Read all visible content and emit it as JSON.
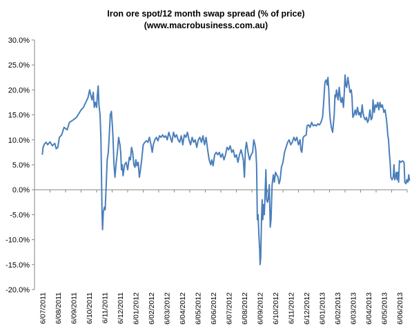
{
  "chart_data": {
    "type": "line",
    "title": "Iron ore spot/12 month swap spread (% of price)",
    "subtitle": "(www.macrobusiness.com.au)",
    "xlabel": "",
    "ylabel": "",
    "ylim": [
      -20,
      30
    ],
    "grid": false,
    "legend": "none",
    "yticks": [
      "30.0%",
      "25.0%",
      "20.0%",
      "15.0%",
      "10.0%",
      "5.0%",
      "0.0%",
      "-5.0%",
      "-10.0%",
      "-15.0%",
      "-20.0%"
    ],
    "yticks_values": [
      30,
      25,
      20,
      15,
      10,
      5,
      0,
      -5,
      -10,
      -15,
      -20
    ],
    "categories": [
      "6/07/2011",
      "6/08/2011",
      "6/09/2011",
      "6/10/2011",
      "6/11/2011",
      "6/12/2011",
      "6/01/2012",
      "6/02/2012",
      "6/03/2012",
      "6/04/2012",
      "6/05/2012",
      "6/06/2012",
      "6/07/2012",
      "6/08/2012",
      "6/09/2012",
      "6/10/2012",
      "6/11/2012",
      "6/12/2012",
      "6/01/2013",
      "6/02/2013",
      "6/03/2013",
      "6/04/2013",
      "6/05/2013",
      "6/06/2013"
    ],
    "series": [
      {
        "color": "#4a7ebb",
        "values": [
          [
            0,
            7.0
          ],
          [
            0.05,
            8.5
          ],
          [
            0.15,
            9.2
          ],
          [
            0.25,
            9.5
          ],
          [
            0.35,
            9.0
          ],
          [
            0.5,
            9.6
          ],
          [
            0.65,
            8.8
          ],
          [
            0.8,
            9.3
          ],
          [
            0.9,
            8.2
          ],
          [
            1.0,
            8.5
          ],
          [
            1.1,
            10.5
          ],
          [
            1.25,
            11.0
          ],
          [
            1.4,
            12.5
          ],
          [
            1.6,
            12.0
          ],
          [
            1.75,
            13.5
          ],
          [
            1.9,
            13.8
          ],
          [
            2.0,
            14.0
          ],
          [
            2.2,
            14.5
          ],
          [
            2.4,
            15.5
          ],
          [
            2.5,
            16.0
          ],
          [
            2.65,
            16.5
          ],
          [
            2.8,
            17.5
          ],
          [
            2.95,
            18.5
          ],
          [
            3.05,
            20.0
          ],
          [
            3.12,
            19.0
          ],
          [
            3.2,
            18.0
          ],
          [
            3.28,
            19.5
          ],
          [
            3.35,
            16.5
          ],
          [
            3.42,
            17.5
          ],
          [
            3.5,
            16.5
          ],
          [
            3.55,
            19.0
          ],
          [
            3.6,
            20.8
          ],
          [
            3.65,
            17.0
          ],
          [
            3.72,
            15.0
          ],
          [
            3.78,
            10.0
          ],
          [
            3.85,
            -5.0
          ],
          [
            3.88,
            -8.0
          ],
          [
            3.93,
            -4.5
          ],
          [
            4.0,
            -3.5
          ],
          [
            4.05,
            -4.0
          ],
          [
            4.12,
            1.0
          ],
          [
            4.18,
            6.0
          ],
          [
            4.25,
            7.5
          ],
          [
            4.3,
            10.0
          ],
          [
            4.38,
            15.0
          ],
          [
            4.45,
            15.7
          ],
          [
            4.5,
            13.5
          ],
          [
            4.55,
            11.0
          ],
          [
            4.62,
            5.0
          ],
          [
            4.68,
            2.5
          ],
          [
            4.75,
            5.0
          ],
          [
            4.85,
            8.0
          ],
          [
            4.92,
            10.5
          ],
          [
            5.0,
            9.0
          ],
          [
            5.05,
            7.5
          ],
          [
            5.1,
            4.0
          ],
          [
            5.15,
            5.0
          ],
          [
            5.2,
            2.8
          ],
          [
            5.3,
            5.0
          ],
          [
            5.4,
            5.5
          ],
          [
            5.5,
            4.0
          ],
          [
            5.6,
            6.5
          ],
          [
            5.68,
            6.0
          ],
          [
            5.75,
            8.5
          ],
          [
            5.82,
            7.5
          ],
          [
            5.9,
            5.0
          ],
          [
            5.97,
            4.5
          ],
          [
            6.03,
            6.0
          ],
          [
            6.1,
            4.8
          ],
          [
            6.18,
            5.5
          ],
          [
            6.25,
            2.5
          ],
          [
            6.32,
            4.0
          ],
          [
            6.4,
            6.0
          ],
          [
            6.5,
            9.0
          ],
          [
            6.6,
            9.5
          ],
          [
            6.7,
            9.8
          ],
          [
            6.8,
            9.5
          ],
          [
            6.9,
            10.5
          ],
          [
            7.0,
            9.0
          ],
          [
            7.08,
            7.5
          ],
          [
            7.15,
            9.0
          ],
          [
            7.25,
            10.0
          ],
          [
            7.35,
            10.5
          ],
          [
            7.45,
            9.8
          ],
          [
            7.55,
            10.8
          ],
          [
            7.65,
            10.5
          ],
          [
            7.75,
            11.0
          ],
          [
            7.85,
            10.5
          ],
          [
            7.95,
            10.8
          ],
          [
            8.05,
            10.0
          ],
          [
            8.15,
            11.5
          ],
          [
            8.25,
            10.5
          ],
          [
            8.35,
            9.5
          ],
          [
            8.45,
            11.5
          ],
          [
            8.55,
            10.5
          ],
          [
            8.65,
            11.0
          ],
          [
            8.75,
            10.0
          ],
          [
            8.85,
            9.5
          ],
          [
            8.95,
            10.8
          ],
          [
            9.05,
            9.0
          ],
          [
            9.15,
            11.0
          ],
          [
            9.25,
            10.5
          ],
          [
            9.35,
            11.5
          ],
          [
            9.45,
            10.0
          ],
          [
            9.55,
            9.0
          ],
          [
            9.65,
            10.5
          ],
          [
            9.75,
            9.5
          ],
          [
            9.85,
            10.0
          ],
          [
            9.95,
            8.5
          ],
          [
            10.05,
            10.0
          ],
          [
            10.15,
            10.5
          ],
          [
            10.25,
            9.5
          ],
          [
            10.35,
            10.8
          ],
          [
            10.45,
            9.0
          ],
          [
            10.55,
            10.5
          ],
          [
            10.65,
            8.0
          ],
          [
            10.75,
            6.0
          ],
          [
            10.85,
            5.0
          ],
          [
            10.92,
            6.0
          ],
          [
            11.0,
            4.8
          ],
          [
            11.1,
            7.0
          ],
          [
            11.2,
            7.5
          ],
          [
            11.3,
            7.0
          ],
          [
            11.4,
            7.5
          ],
          [
            11.5,
            6.5
          ],
          [
            11.6,
            7.2
          ],
          [
            11.7,
            6.0
          ],
          [
            11.8,
            7.0
          ],
          [
            11.9,
            8.5
          ],
          [
            12.0,
            8.0
          ],
          [
            12.1,
            8.8
          ],
          [
            12.2,
            7.5
          ],
          [
            12.3,
            8.0
          ],
          [
            12.4,
            6.5
          ],
          [
            12.5,
            7.0
          ],
          [
            12.6,
            5.5
          ],
          [
            12.7,
            7.0
          ],
          [
            12.8,
            8.0
          ],
          [
            12.88,
            7.0
          ],
          [
            12.95,
            6.0
          ],
          [
            13.02,
            2.5
          ],
          [
            13.08,
            8.0
          ],
          [
            13.15,
            9.5
          ],
          [
            13.25,
            7.5
          ],
          [
            13.35,
            6.0
          ],
          [
            13.45,
            7.0
          ],
          [
            13.55,
            7.5
          ],
          [
            13.62,
            10.0
          ],
          [
            13.7,
            9.0
          ],
          [
            13.75,
            8.0
          ],
          [
            13.8,
            5.0
          ],
          [
            13.85,
            -6.0
          ],
          [
            13.9,
            -5.0
          ],
          [
            13.95,
            -9.0
          ],
          [
            14.0,
            -12.0
          ],
          [
            14.03,
            -15.0
          ],
          [
            14.07,
            -13.5
          ],
          [
            14.12,
            -6.0
          ],
          [
            14.16,
            -2.0
          ],
          [
            14.2,
            -6.0
          ],
          [
            14.25,
            -3.0
          ],
          [
            14.3,
            -5.0
          ],
          [
            14.35,
            -1.0
          ],
          [
            14.4,
            4.0
          ],
          [
            14.45,
            -2.0
          ],
          [
            14.5,
            -2.5
          ],
          [
            14.55,
            -2.0
          ],
          [
            14.62,
            1.0
          ],
          [
            14.68,
            -7.5
          ],
          [
            14.73,
            -6.0
          ],
          [
            14.8,
            1.0
          ],
          [
            14.88,
            3.0
          ],
          [
            14.95,
            1.5
          ],
          [
            15.02,
            3.5
          ],
          [
            15.1,
            3.0
          ],
          [
            15.18,
            2.5
          ],
          [
            15.25,
            1.2
          ],
          [
            15.32,
            2.0
          ],
          [
            15.4,
            4.5
          ],
          [
            15.5,
            5.5
          ],
          [
            15.6,
            7.5
          ],
          [
            15.7,
            8.5
          ],
          [
            15.8,
            9.5
          ],
          [
            15.9,
            10.0
          ],
          [
            16.0,
            9.0
          ],
          [
            16.1,
            9.5
          ],
          [
            16.2,
            10.5
          ],
          [
            16.3,
            9.8
          ],
          [
            16.4,
            10.5
          ],
          [
            16.5,
            9.0
          ],
          [
            16.6,
            10.0
          ],
          [
            16.65,
            8.0
          ],
          [
            16.72,
            7.5
          ],
          [
            16.8,
            10.5
          ],
          [
            16.9,
            10.8
          ],
          [
            17.0,
            11.0
          ],
          [
            17.05,
            12.8
          ],
          [
            17.15,
            13.0
          ],
          [
            17.25,
            12.5
          ],
          [
            17.35,
            13.5
          ],
          [
            17.45,
            12.8
          ],
          [
            17.55,
            13.0
          ],
          [
            17.65,
            12.8
          ],
          [
            17.75,
            13.2
          ],
          [
            17.85,
            13.0
          ],
          [
            17.95,
            13.5
          ],
          [
            18.05,
            14.5
          ],
          [
            18.12,
            17.5
          ],
          [
            18.2,
            21.5
          ],
          [
            18.28,
            22.0
          ],
          [
            18.35,
            21.0
          ],
          [
            18.4,
            22.5
          ],
          [
            18.45,
            20.0
          ],
          [
            18.5,
            16.0
          ],
          [
            18.55,
            14.0
          ],
          [
            18.62,
            12.5
          ],
          [
            18.7,
            11.5
          ],
          [
            18.8,
            15.0
          ],
          [
            18.85,
            19.0
          ],
          [
            18.9,
            18.5
          ],
          [
            18.95,
            20.0
          ],
          [
            19.0,
            19.0
          ],
          [
            19.05,
            18.0
          ],
          [
            19.12,
            20.5
          ],
          [
            19.2,
            18.0
          ],
          [
            19.25,
            17.5
          ],
          [
            19.32,
            18.5
          ],
          [
            19.4,
            16.5
          ],
          [
            19.45,
            19.5
          ],
          [
            19.5,
            23.0
          ],
          [
            19.55,
            21.0
          ],
          [
            19.6,
            20.5
          ],
          [
            19.68,
            22.5
          ],
          [
            19.75,
            21.0
          ],
          [
            19.82,
            19.5
          ],
          [
            19.9,
            20.0
          ],
          [
            19.95,
            18.5
          ],
          [
            20.0,
            14.5
          ],
          [
            20.08,
            15.0
          ],
          [
            20.15,
            16.0
          ],
          [
            20.22,
            15.0
          ],
          [
            20.3,
            16.5
          ],
          [
            20.38,
            15.0
          ],
          [
            20.45,
            15.5
          ],
          [
            20.52,
            14.5
          ],
          [
            20.6,
            17.0
          ],
          [
            20.65,
            15.5
          ],
          [
            20.72,
            14.5
          ],
          [
            20.8,
            14.0
          ],
          [
            20.88,
            14.5
          ],
          [
            20.95,
            13.5
          ],
          [
            21.02,
            14.0
          ],
          [
            21.1,
            16.0
          ],
          [
            21.18,
            14.0
          ],
          [
            21.25,
            14.5
          ],
          [
            21.3,
            18.0
          ],
          [
            21.38,
            15.5
          ],
          [
            21.45,
            17.0
          ],
          [
            21.52,
            16.5
          ],
          [
            21.6,
            17.5
          ],
          [
            21.68,
            16.0
          ],
          [
            21.75,
            17.5
          ],
          [
            21.82,
            16.5
          ],
          [
            21.9,
            17.0
          ],
          [
            22.0,
            15.5
          ],
          [
            22.08,
            16.0
          ],
          [
            22.15,
            14.5
          ],
          [
            22.2,
            13.0
          ],
          [
            22.25,
            11.0
          ],
          [
            22.3,
            10.0
          ],
          [
            22.35,
            7.5
          ],
          [
            22.4,
            5.5
          ],
          [
            22.45,
            2.5
          ],
          [
            22.52,
            2.0
          ],
          [
            22.6,
            2.5
          ],
          [
            22.65,
            5.0
          ],
          [
            22.7,
            2.0
          ],
          [
            22.75,
            2.5
          ],
          [
            22.8,
            3.5
          ],
          [
            22.85,
            2.0
          ],
          [
            22.9,
            3.5
          ],
          [
            22.95,
            1.5
          ],
          [
            23.0,
            5.8
          ],
          [
            23.1,
            5.5
          ],
          [
            23.2,
            5.8
          ],
          [
            23.3,
            5.5
          ],
          [
            23.35,
            1.5
          ],
          [
            23.42,
            1.2
          ],
          [
            23.48,
            2.0
          ],
          [
            23.55,
            1.5
          ],
          [
            23.6,
            3.0
          ],
          [
            23.65,
            1.8
          ]
        ]
      }
    ]
  }
}
